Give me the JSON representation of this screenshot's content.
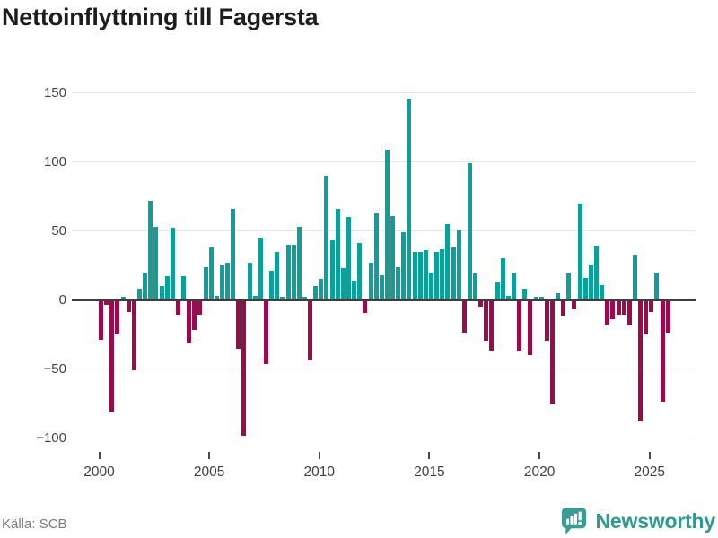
{
  "title": "Nettoinflyttning till Fagersta",
  "source": "Källa: SCB",
  "logo": {
    "text": "Newsworthy",
    "color": "#2f9a92",
    "icon_bg": "#3d9b93",
    "icon_glyph_color": "#ffffff"
  },
  "chart_data": {
    "type": "bar",
    "title": "Nettoinflyttning till Fagersta",
    "frequency": "quarterly",
    "x_start": "2000-Q1",
    "x_end": "2025-Q4",
    "values": [
      -28,
      -3,
      -81,
      -24,
      2,
      -8,
      -50,
      8,
      20,
      72,
      53,
      10,
      17,
      52,
      -10,
      17,
      -31,
      -21,
      -10,
      24,
      38,
      3,
      25,
      27,
      66,
      -35,
      -98,
      27,
      3,
      45,
      -46,
      21,
      35,
      2,
      40,
      40,
      53,
      2,
      -43,
      10,
      15,
      90,
      43,
      66,
      23,
      60,
      14,
      41,
      -9,
      27,
      63,
      18,
      109,
      61,
      24,
      49,
      146,
      35,
      35,
      36,
      20,
      35,
      37,
      55,
      38,
      51,
      -23,
      99,
      19,
      -4,
      -29,
      -36,
      13,
      30,
      3,
      19,
      -36,
      8,
      -39,
      2,
      2,
      -29,
      -75,
      5,
      -11,
      19,
      -6,
      70,
      16,
      26,
      39,
      11,
      -17,
      -13,
      -10,
      -10,
      -18,
      33,
      -87,
      -24,
      -8,
      20,
      -73,
      -23
    ],
    "y_ticks": [
      150,
      100,
      50,
      0,
      -50,
      -100
    ],
    "ylim": [
      -100,
      150
    ],
    "x_tick_labels": [
      "2000",
      "2005",
      "2010",
      "2015",
      "2020",
      "2025"
    ],
    "x_tick_quarter_indices": [
      0,
      20,
      40,
      60,
      80,
      100
    ],
    "positive_color": "#0ca098",
    "negative_color": "#9b0a4b",
    "grid": "horizontal-only",
    "legend": "none"
  }
}
